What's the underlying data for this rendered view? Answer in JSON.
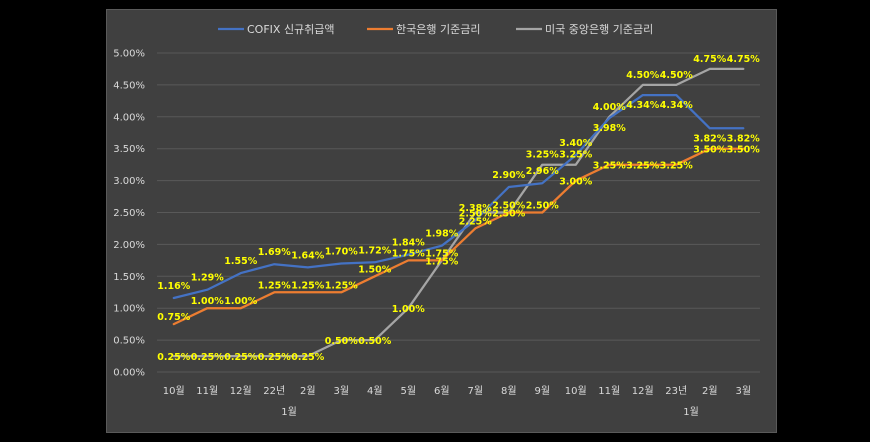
{
  "chart_data": {
    "type": "line",
    "title": "",
    "xlabel": "",
    "ylabel": "",
    "categories": [
      "10월",
      "11월",
      "12월",
      "22년",
      "2월",
      "3월",
      "4월",
      "5월",
      "6월",
      "7월",
      "8월",
      "9월",
      "10월",
      "11월",
      "12월",
      "23년",
      "2월",
      "3월"
    ],
    "category_sublabels": {
      "3": "1월",
      "15": "1월"
    },
    "ylim": [
      0,
      5
    ],
    "yticks": [
      "0.00%",
      "0.50%",
      "1.00%",
      "1.50%",
      "2.00%",
      "2.50%",
      "3.00%",
      "3.50%",
      "4.00%",
      "4.50%",
      "5.00%"
    ],
    "grid": true,
    "legend_position": "top",
    "series": [
      {
        "name": "COFIX 신규취급액",
        "color": "#4472c4",
        "values": [
          1.16,
          1.29,
          1.55,
          1.69,
          1.64,
          1.7,
          1.72,
          1.84,
          1.98,
          2.38,
          2.9,
          2.96,
          3.4,
          3.98,
          4.34,
          4.34,
          3.82,
          3.82
        ],
        "labels": [
          "1.16%",
          "1.29%",
          "1.55%",
          "1.69%",
          "1.64%",
          "1.70%",
          "1.72%",
          "1.84%",
          "1.98%",
          "2.38%",
          "2.90%",
          "2.96%",
          "3.40%",
          "3.98%",
          "4.34%",
          "4.34%",
          "3.82%",
          "3.82%"
        ]
      },
      {
        "name": "한국은행 기준금리",
        "color": "#ed7d31",
        "values": [
          0.75,
          1.0,
          1.0,
          1.25,
          1.25,
          1.25,
          1.5,
          1.75,
          1.75,
          2.25,
          2.5,
          2.5,
          3.0,
          3.25,
          3.25,
          3.25,
          3.5,
          3.5
        ],
        "labels": [
          "0.75%",
          "1.00%",
          "1.00%",
          "1.25%",
          "1.25%",
          "1.25%",
          "1.50%",
          "1.75%",
          "1.75%",
          "2.25%",
          "2.50%",
          "2.50%",
          "3.00%",
          "3.25%",
          "3.25%",
          "3.25%",
          "3.50%",
          "3.50%"
        ]
      },
      {
        "name": "미국 중앙은행 기준금리",
        "color": "#a5a5a5",
        "values": [
          0.25,
          0.25,
          0.25,
          0.25,
          0.25,
          0.5,
          0.5,
          1.0,
          1.75,
          2.5,
          2.5,
          3.25,
          3.25,
          4.0,
          4.5,
          4.5,
          4.75,
          4.75
        ],
        "labels": [
          "0.25%",
          "0.25%",
          "0.25%",
          "0.25%",
          "0.25%",
          "0.50%",
          "0.50%",
          "1.00%",
          "1.75%",
          "2.50%",
          "2.50%",
          "3.25%",
          "3.25%",
          "4.00%",
          "4.50%",
          "4.50%",
          "4.75%",
          "4.75%"
        ]
      }
    ],
    "label_color": "#ffff00"
  }
}
